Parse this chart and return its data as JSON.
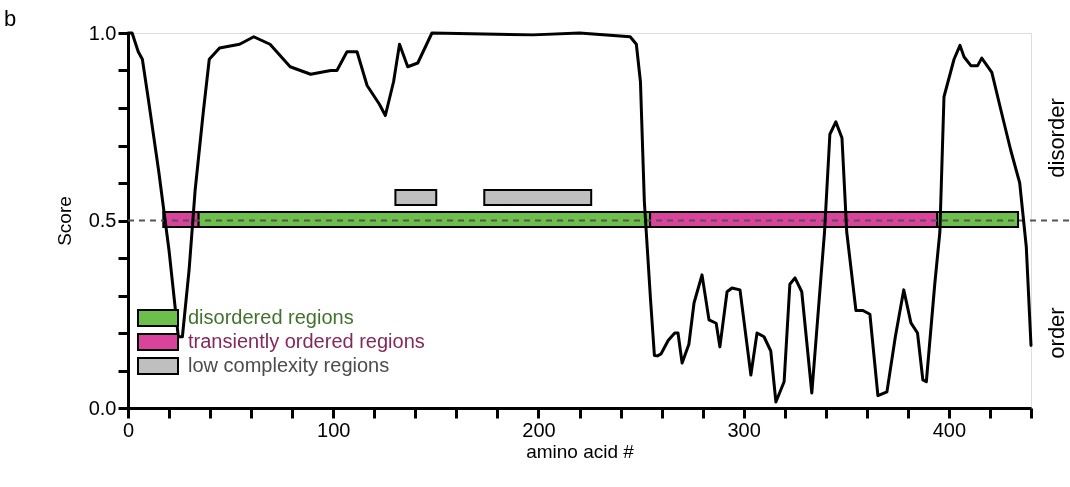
{
  "chart_data": {
    "type": "line",
    "xlabel": "amino acid #",
    "ylabel": "Score",
    "annotations": [
      "b",
      "disorder",
      "order"
    ],
    "x": [
      0,
      2,
      5,
      7,
      10,
      15,
      20,
      24.5,
      26.5,
      29.8,
      32.7,
      36.7,
      39.6,
      44.6,
      54.4,
      61.3,
      69.2,
      79,
      89,
      98.8,
      101.8,
      106.7,
      111.6,
      116.5,
      122.5,
      125.4,
      129.4,
      132.3,
      136.3,
      141.2,
      148.1,
      197.4,
      220,
      244.7,
      247.7,
      249.7,
      251.6,
      254.6,
      256.5,
      258,
      259.7,
      263.2,
      266.4,
      268,
      270,
      273.3,
      275.8,
      279.7,
      283.1,
      286.6,
      288.4,
      291.9,
      294.3,
      298.2,
      303.5,
      306.5,
      309.9,
      313.2,
      315.7,
      319.7,
      322.5,
      325,
      328.3,
      333.2,
      339.4,
      342,
      344.9,
      347.9,
      350.2,
      354.7,
      358.1,
      361.5,
      365.4,
      369.8,
      373.9,
      378,
      381.5,
      384.7,
      387.3,
      389,
      393.1,
      395.6,
      397.6,
      402.5,
      405.4,
      407.4,
      410.7,
      414,
      416,
      420.9,
      425.8,
      430.1,
      434.5,
      437.7,
      440
    ],
    "series": [
      {
        "color": "#000000",
        "values": [
          1.0,
          1.0,
          0.95,
          0.93,
          0.82,
          0.63,
          0.42,
          0.19,
          0.19,
          0.37,
          0.58,
          0.79,
          0.93,
          0.96,
          0.97,
          0.99,
          0.97,
          0.91,
          0.89,
          0.9,
          0.9,
          0.95,
          0.95,
          0.86,
          0.81,
          0.78,
          0.87,
          0.97,
          0.91,
          0.92,
          1.0,
          0.995,
          1.0,
          0.99,
          0.97,
          0.87,
          0.55,
          0.29,
          0.14,
          0.139,
          0.144,
          0.18,
          0.2,
          0.2,
          0.12,
          0.17,
          0.28,
          0.355,
          0.235,
          0.226,
          0.163,
          0.31,
          0.32,
          0.315,
          0.088,
          0.2,
          0.19,
          0.152,
          0.016,
          0.07,
          0.33,
          0.347,
          0.31,
          0.04,
          0.47,
          0.73,
          0.763,
          0.72,
          0.47,
          0.26,
          0.26,
          0.25,
          0.033,
          0.043,
          0.19,
          0.315,
          0.227,
          0.2,
          0.075,
          0.07,
          0.33,
          0.47,
          0.83,
          0.93,
          0.967,
          0.936,
          0.913,
          0.913,
          0.933,
          0.895,
          0.784,
          0.688,
          0.6,
          0.43,
          0.167
        ]
      }
    ],
    "xlim": [
      0,
      440
    ],
    "xticks": [
      0,
      {
        "value": 20,
        "label": null
      },
      {
        "value": 40,
        "label": null
      },
      {
        "value": 60,
        "label": null
      },
      {
        "value": 80,
        "label": null
      },
      100,
      {
        "value": 120,
        "label": null
      },
      {
        "value": 140,
        "label": null
      },
      {
        "value": 160,
        "label": null
      },
      {
        "value": 180,
        "label": null
      },
      200,
      {
        "value": 220,
        "label": null
      },
      {
        "value": 240,
        "label": null
      },
      {
        "value": 260,
        "label": null
      },
      {
        "value": 280,
        "label": null
      },
      300,
      {
        "value": 320,
        "label": null
      },
      {
        "value": 340,
        "label": null
      },
      {
        "value": 360,
        "label": null
      },
      {
        "value": 380,
        "label": null
      },
      400,
      {
        "value": 420,
        "label": null
      },
      {
        "value": 440,
        "label": null
      }
    ],
    "ylim": [
      0,
      1
    ],
    "yticks": [
      {
        "value": 0,
        "label": "0.0"
      },
      {
        "value": 0.1,
        "label": null
      },
      {
        "value": 0.2,
        "label": null
      },
      {
        "value": 0.3,
        "label": null
      },
      {
        "value": 0.4,
        "label": null
      },
      {
        "value": 0.5,
        "label": "0.5"
      },
      {
        "value": 0.6,
        "label": null
      },
      {
        "value": 0.7,
        "label": null
      },
      {
        "value": 0.8,
        "label": null
      },
      {
        "value": 0.9,
        "label": null
      },
      {
        "value": 1,
        "label": "1.0"
      }
    ],
    "ref_lines": [
      {
        "axis": "y",
        "value": 0.5,
        "line_style": "dashed",
        "color": "#555555"
      }
    ],
    "bands": [
      {
        "axis": "x",
        "from": 34.3,
        "to": 254.4,
        "label": "disordered regions",
        "color": "#6dbf4b"
      },
      {
        "axis": "x",
        "from": 394.2,
        "to": 433.7,
        "color": "#6dbf4b"
      },
      {
        "axis": "x",
        "from": 17.2,
        "to": 34.3,
        "label": "transiently ordered regions",
        "color": "#d9439b"
      },
      {
        "axis": "x",
        "from": 254.4,
        "to": 394.2,
        "color": "#d9439b"
      },
      {
        "axis": "x",
        "from": 130.3,
        "to": 150.2,
        "label": "low complexity regions",
        "color": "#bfbfbf"
      },
      {
        "axis": "x",
        "from": 173.6,
        "to": 225.7,
        "color": "#bfbfbf"
      }
    ],
    "legend": "bottom left",
    "grid": false,
    "line_style": "solid",
    "marker": "none"
  }
}
